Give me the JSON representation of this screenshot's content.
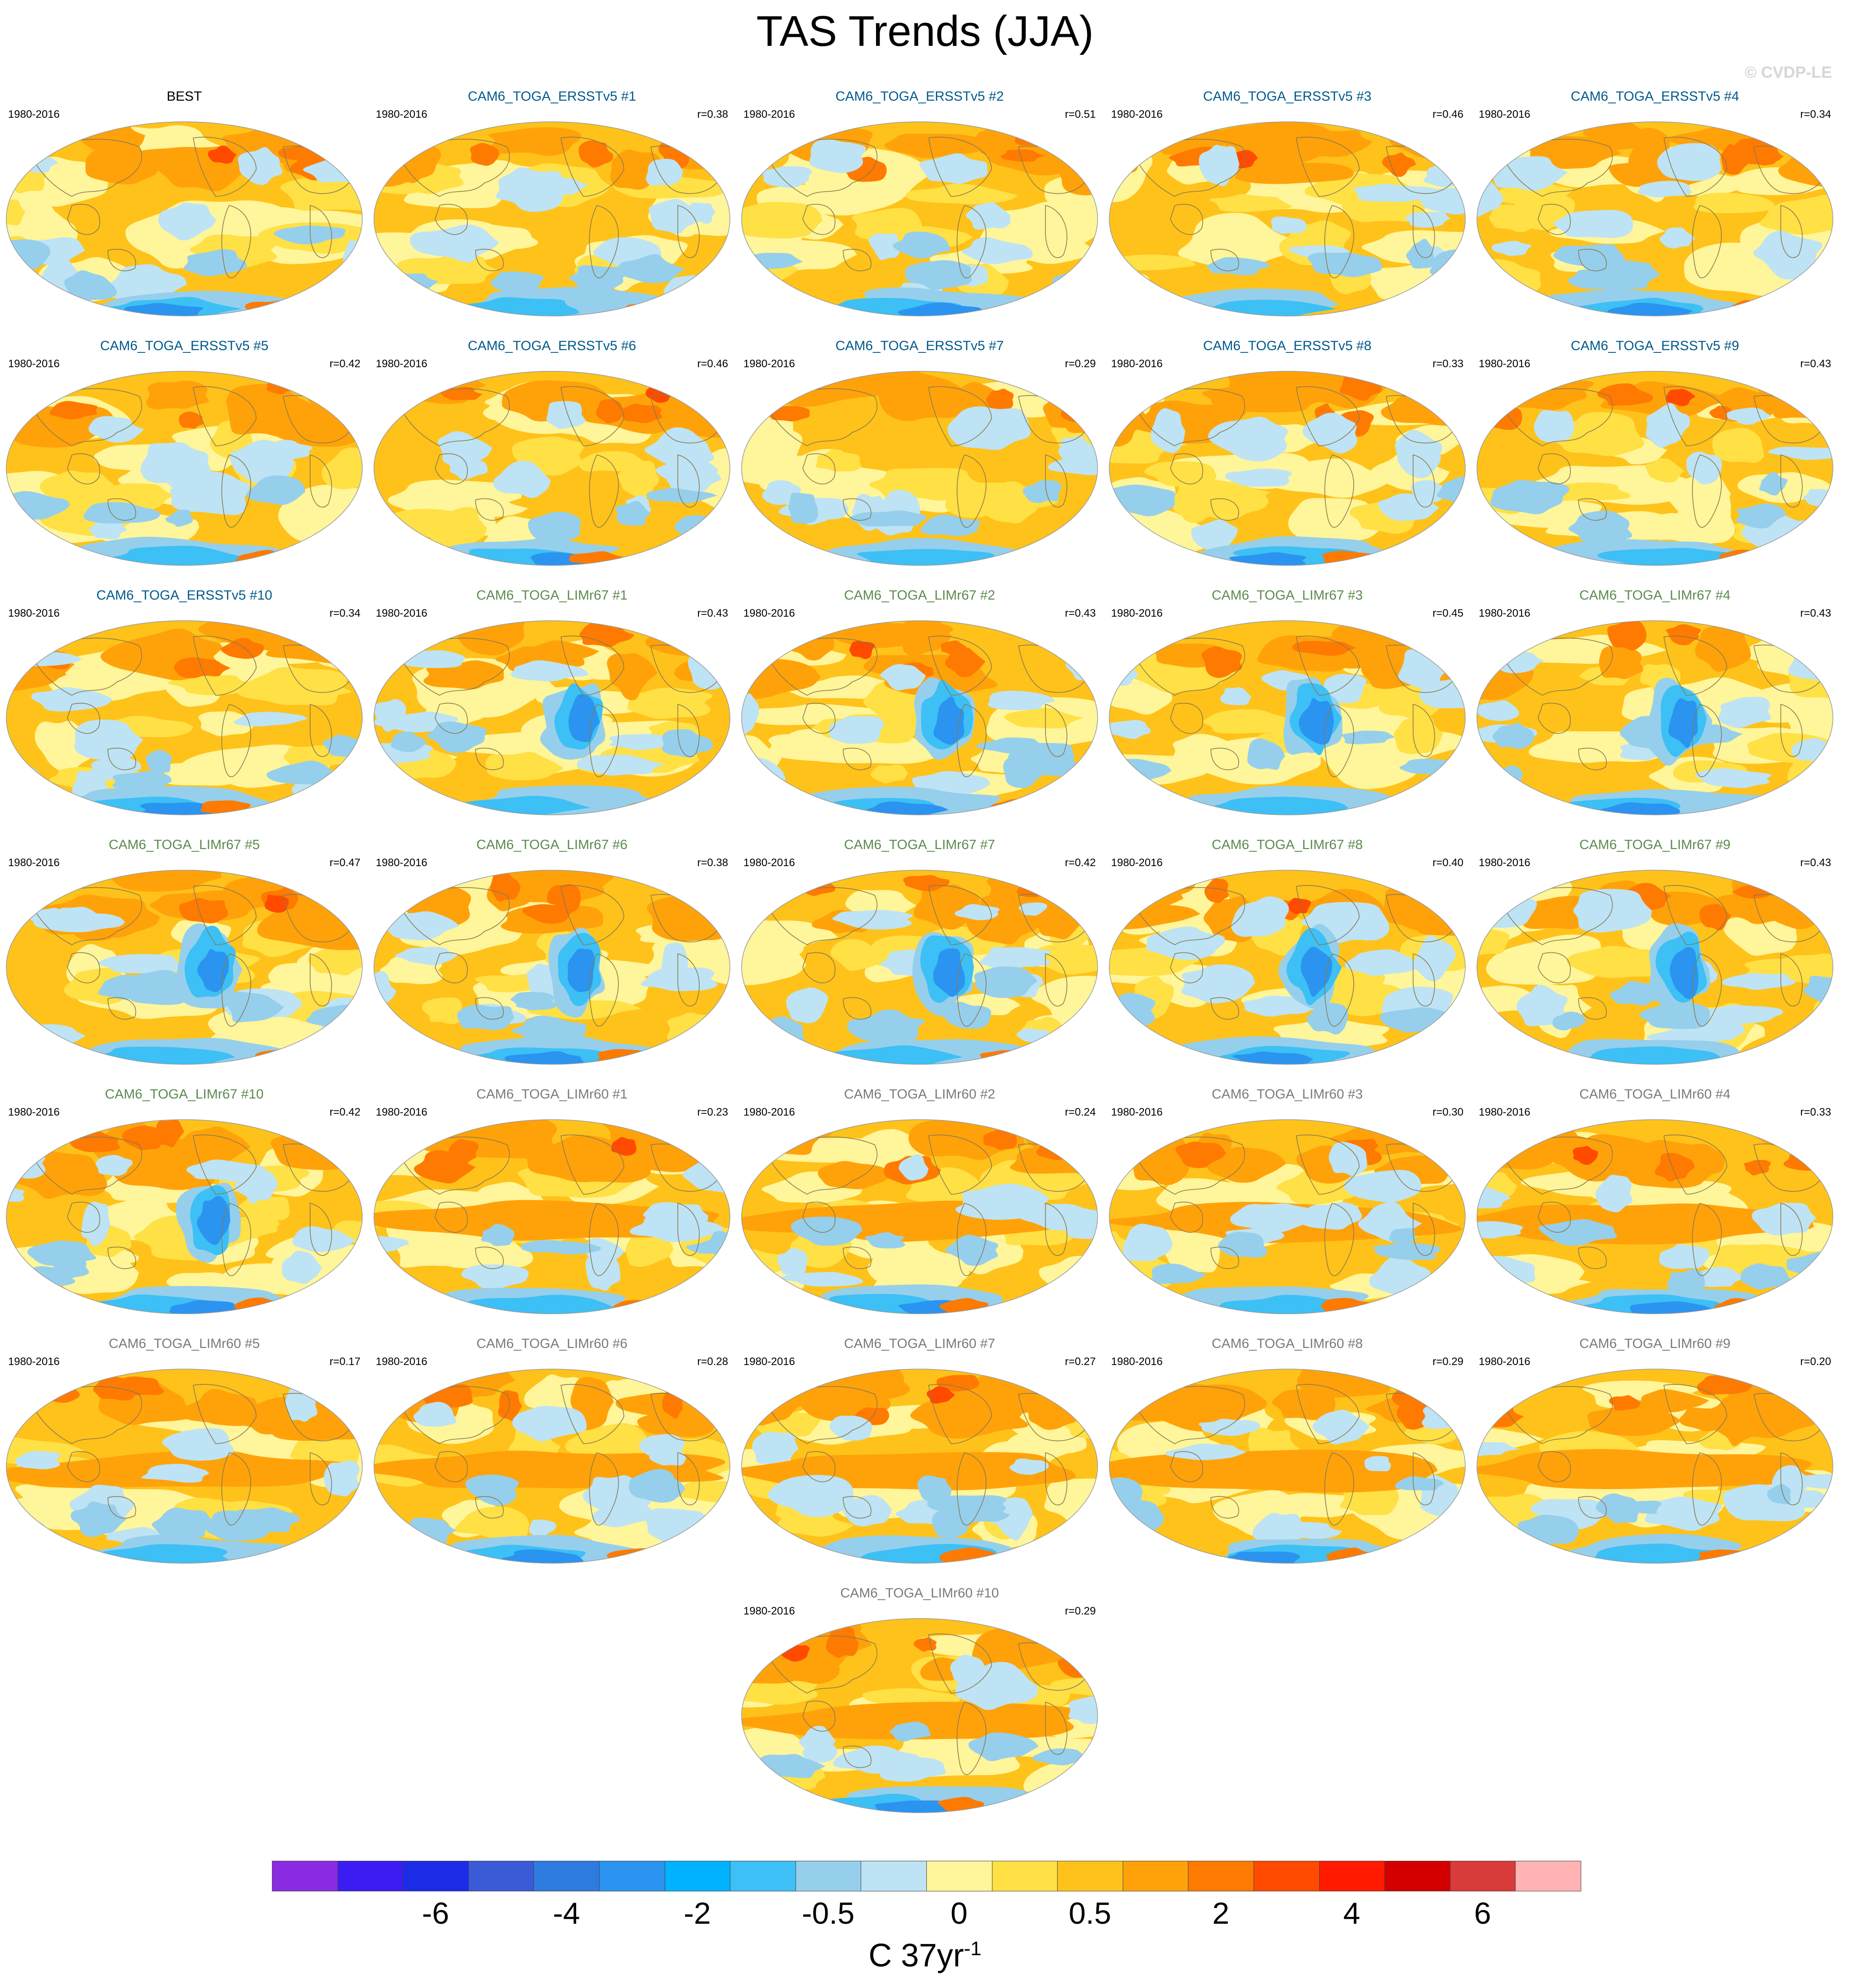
{
  "title": "TAS Trends (JJA)",
  "credit": "© CVDP-LE",
  "units": "C 37yr-1",
  "colors": {
    "ersst_title": "#00598b",
    "limr67_title": "#5b8a4e",
    "limr60_title": "#7a7a7a",
    "obs_title": "#000000",
    "land_outline": "#8a7a50"
  },
  "panels": [
    {
      "title": "BEST",
      "period": "1980-2016",
      "r": "",
      "group": "obs",
      "pattern": 0
    },
    {
      "title": "CAM6_TOGA_ERSSTv5 #1",
      "period": "1980-2016",
      "r": "r=0.38",
      "group": "ersst",
      "pattern": 1
    },
    {
      "title": "CAM6_TOGA_ERSSTv5 #2",
      "period": "1980-2016",
      "r": "r=0.51",
      "group": "ersst",
      "pattern": 2
    },
    {
      "title": "CAM6_TOGA_ERSSTv5 #3",
      "period": "1980-2016",
      "r": "r=0.46",
      "group": "ersst",
      "pattern": 3
    },
    {
      "title": "CAM6_TOGA_ERSSTv5 #4",
      "period": "1980-2016",
      "r": "r=0.34",
      "group": "ersst",
      "pattern": 4
    },
    {
      "title": "CAM6_TOGA_ERSSTv5 #5",
      "period": "1980-2016",
      "r": "r=0.42",
      "group": "ersst",
      "pattern": 5
    },
    {
      "title": "CAM6_TOGA_ERSSTv5 #6",
      "period": "1980-2016",
      "r": "r=0.46",
      "group": "ersst",
      "pattern": 6
    },
    {
      "title": "CAM6_TOGA_ERSSTv5 #7",
      "period": "1980-2016",
      "r": "r=0.29",
      "group": "ersst",
      "pattern": 7
    },
    {
      "title": "CAM6_TOGA_ERSSTv5 #8",
      "period": "1980-2016",
      "r": "r=0.33",
      "group": "ersst",
      "pattern": 8
    },
    {
      "title": "CAM6_TOGA_ERSSTv5 #9",
      "period": "1980-2016",
      "r": "r=0.43",
      "group": "ersst",
      "pattern": 9
    },
    {
      "title": "CAM6_TOGA_ERSSTv5 #10",
      "period": "1980-2016",
      "r": "r=0.34",
      "group": "ersst",
      "pattern": 10
    },
    {
      "title": "CAM6_TOGA_LIMr67 #1",
      "period": "1980-2016",
      "r": "r=0.43",
      "group": "limr67",
      "pattern": 11
    },
    {
      "title": "CAM6_TOGA_LIMr67 #2",
      "period": "1980-2016",
      "r": "r=0.43",
      "group": "limr67",
      "pattern": 12
    },
    {
      "title": "CAM6_TOGA_LIMr67 #3",
      "period": "1980-2016",
      "r": "r=0.45",
      "group": "limr67",
      "pattern": 13
    },
    {
      "title": "CAM6_TOGA_LIMr67 #4",
      "period": "1980-2016",
      "r": "r=0.43",
      "group": "limr67",
      "pattern": 14
    },
    {
      "title": "CAM6_TOGA_LIMr67 #5",
      "period": "1980-2016",
      "r": "r=0.47",
      "group": "limr67",
      "pattern": 15
    },
    {
      "title": "CAM6_TOGA_LIMr67 #6",
      "period": "1980-2016",
      "r": "r=0.38",
      "group": "limr67",
      "pattern": 16
    },
    {
      "title": "CAM6_TOGA_LIMr67 #7",
      "period": "1980-2016",
      "r": "r=0.42",
      "group": "limr67",
      "pattern": 17
    },
    {
      "title": "CAM6_TOGA_LIMr67 #8",
      "period": "1980-2016",
      "r": "r=0.40",
      "group": "limr67",
      "pattern": 18
    },
    {
      "title": "CAM6_TOGA_LIMr67 #9",
      "period": "1980-2016",
      "r": "r=0.43",
      "group": "limr67",
      "pattern": 19
    },
    {
      "title": "CAM6_TOGA_LIMr67 #10",
      "period": "1980-2016",
      "r": "r=0.42",
      "group": "limr67",
      "pattern": 20
    },
    {
      "title": "CAM6_TOGA_LIMr60 #1",
      "period": "1980-2016",
      "r": "r=0.23",
      "group": "limr60",
      "pattern": 21
    },
    {
      "title": "CAM6_TOGA_LIMr60 #2",
      "period": "1980-2016",
      "r": "r=0.24",
      "group": "limr60",
      "pattern": 22
    },
    {
      "title": "CAM6_TOGA_LIMr60 #3",
      "period": "1980-2016",
      "r": "r=0.30",
      "group": "limr60",
      "pattern": 23
    },
    {
      "title": "CAM6_TOGA_LIMr60 #4",
      "period": "1980-2016",
      "r": "r=0.33",
      "group": "limr60",
      "pattern": 24
    },
    {
      "title": "CAM6_TOGA_LIMr60 #5",
      "period": "1980-2016",
      "r": "r=0.17",
      "group": "limr60",
      "pattern": 25
    },
    {
      "title": "CAM6_TOGA_LIMr60 #6",
      "period": "1980-2016",
      "r": "r=0.28",
      "group": "limr60",
      "pattern": 26
    },
    {
      "title": "CAM6_TOGA_LIMr60 #7",
      "period": "1980-2016",
      "r": "r=0.27",
      "group": "limr60",
      "pattern": 27
    },
    {
      "title": "CAM6_TOGA_LIMr60 #8",
      "period": "1980-2016",
      "r": "r=0.29",
      "group": "limr60",
      "pattern": 28
    },
    {
      "title": "CAM6_TOGA_LIMr60 #9",
      "period": "1980-2016",
      "r": "r=0.20",
      "group": "limr60",
      "pattern": 29
    },
    {
      "title": "CAM6_TOGA_LIMr60 #10",
      "period": "1980-2016",
      "r": "r=0.29",
      "group": "limr60",
      "pattern": 30
    }
  ],
  "colorbar": {
    "colors": [
      "#8a2be2",
      "#3b1cf2",
      "#1c2be8",
      "#3a5ad8",
      "#2e7be0",
      "#2a94f0",
      "#00b2ff",
      "#3cc0f5",
      "#96cfec",
      "#bde3f5",
      "#fff59a",
      "#ffe045",
      "#ffc21a",
      "#ffa20a",
      "#ff7a00",
      "#ff4a00",
      "#ff1a00",
      "#d40000",
      "#d93a3a",
      "#ffb3b3"
    ],
    "labels": [
      "-6",
      "-4",
      "-2",
      "-0.5",
      "0",
      "0.5",
      "2",
      "4",
      "6"
    ],
    "label_boundaries": [
      2,
      4,
      6,
      8,
      10,
      12,
      14,
      16,
      18
    ]
  }
}
